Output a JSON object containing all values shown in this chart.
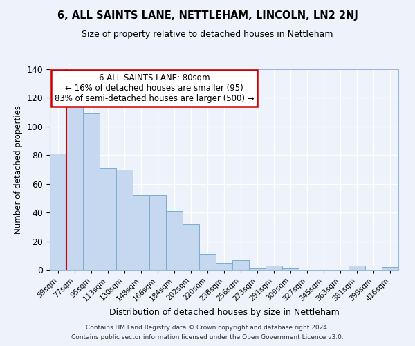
{
  "title": "6, ALL SAINTS LANE, NETTLEHAM, LINCOLN, LN2 2NJ",
  "subtitle": "Size of property relative to detached houses in Nettleham",
  "xlabel": "Distribution of detached houses by size in Nettleham",
  "ylabel": "Number of detached properties",
  "bar_labels": [
    "59sqm",
    "77sqm",
    "95sqm",
    "113sqm",
    "130sqm",
    "148sqm",
    "166sqm",
    "184sqm",
    "202sqm",
    "220sqm",
    "238sqm",
    "256sqm",
    "273sqm",
    "291sqm",
    "309sqm",
    "327sqm",
    "345sqm",
    "363sqm",
    "381sqm",
    "399sqm",
    "416sqm"
  ],
  "bar_values": [
    81,
    114,
    109,
    71,
    70,
    52,
    52,
    41,
    32,
    11,
    5,
    7,
    1,
    3,
    1,
    0,
    0,
    0,
    3,
    0,
    2
  ],
  "bar_color": "#c5d8f0",
  "bar_edge_color": "#7baed4",
  "vline_x_idx": 1,
  "vline_color": "#cc0000",
  "annotation_text": "6 ALL SAINTS LANE: 80sqm\n← 16% of detached houses are smaller (95)\n83% of semi-detached houses are larger (500) →",
  "annotation_box_color": "#ffffff",
  "annotation_box_edge_color": "#cc0000",
  "ylim": [
    0,
    140
  ],
  "yticks": [
    0,
    20,
    40,
    60,
    80,
    100,
    120,
    140
  ],
  "footer1": "Contains HM Land Registry data © Crown copyright and database right 2024.",
  "footer2": "Contains public sector information licensed under the Open Government Licence v3.0.",
  "bg_color": "#eef3fb",
  "grid_color": "#ffffff"
}
